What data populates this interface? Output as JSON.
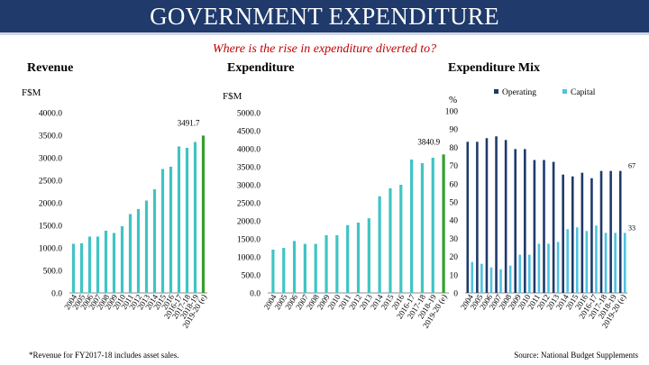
{
  "title": "GOVERNMENT EXPENDITURE",
  "subtitle": "Where is the rise in expenditure diverted to?",
  "colors": {
    "header_bg": "#1f3a6b",
    "subtitle": "#c00000",
    "bar_main": "#40c4c4",
    "bar_highlight": "#33a02c",
    "operating": "#1f3a6b",
    "capital": "#4fc3df"
  },
  "footnote": "*Revenue for FY2017-18 includes asset sales.",
  "source": "Source: National Budget Supplements",
  "chart_data": [
    {
      "type": "bar",
      "title": "Revenue",
      "ylabel": "F$M",
      "ylim": [
        0,
        4000
      ],
      "yticks": [
        "0.0",
        "500.0",
        "1000.0",
        "1500.0",
        "2000.0",
        "2500.0",
        "3000.0",
        "3500.0",
        "4000.0"
      ],
      "categories": [
        "2004",
        "2005",
        "2006",
        "2007",
        "2008",
        "2009",
        "2010",
        "2011",
        "2012",
        "2013",
        "2014",
        "2015",
        "2016",
        "2016-17",
        "2017-18",
        "2018-19",
        "2019-20 (e)"
      ],
      "values": [
        1090,
        1100,
        1250,
        1250,
        1380,
        1330,
        1480,
        1750,
        1860,
        2050,
        2300,
        2750,
        2800,
        3250,
        3220,
        3350,
        3491.7
      ],
      "annotation": "3491.7"
    },
    {
      "type": "bar",
      "title": "Expenditure",
      "ylabel": "F$M",
      "ylim": [
        0,
        5000
      ],
      "yticks": [
        "0.0",
        "500.0",
        "1000.0",
        "1500.0",
        "2000.0",
        "2500.0",
        "3000.0",
        "3500.0",
        "4000.0",
        "4500.0",
        "5000.0"
      ],
      "categories": [
        "2004",
        "2005",
        "2006",
        "2007",
        "2008",
        "2009",
        "2010",
        "2011",
        "2012",
        "2013",
        "2014",
        "2015",
        "2016",
        "2016-17",
        "2017-18",
        "2018-19",
        "2019-20 (e)"
      ],
      "values": [
        1200,
        1250,
        1440,
        1360,
        1360,
        1600,
        1600,
        1880,
        1950,
        2070,
        2680,
        2900,
        3000,
        3700,
        3600,
        3750,
        3840.9
      ],
      "annotation": "3840.9"
    },
    {
      "type": "bar",
      "title": "Expenditure Mix",
      "ylabel": "%",
      "ylim": [
        0,
        100
      ],
      "yticks": [
        "0",
        "10",
        "20",
        "30",
        "40",
        "50",
        "60",
        "70",
        "80",
        "90",
        "100"
      ],
      "legend": "top-right",
      "categories": [
        "2004",
        "2005",
        "2006",
        "2007",
        "2008",
        "2009",
        "2010",
        "2011",
        "2012",
        "2013",
        "2014",
        "2015",
        "2016",
        "2016-17",
        "2017-18",
        "2018-19",
        "2019-20 (e)"
      ],
      "series": [
        {
          "name": "Operating",
          "values": [
            83,
            83,
            85,
            86,
            84,
            79,
            79,
            73,
            73,
            72,
            65,
            64,
            66,
            63,
            67,
            67,
            67
          ]
        },
        {
          "name": "Capital",
          "values": [
            17,
            16,
            14,
            13,
            15,
            21,
            21,
            27,
            27,
            28,
            35,
            36,
            34,
            37,
            33,
            33,
            33
          ]
        }
      ],
      "annotations": [
        "67",
        "33"
      ]
    }
  ]
}
